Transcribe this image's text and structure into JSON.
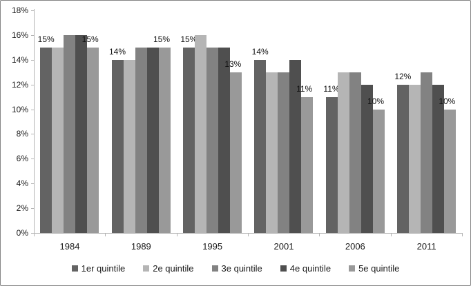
{
  "chart_data": {
    "type": "bar",
    "title": "",
    "xlabel": "",
    "ylabel": "",
    "categories": [
      "1984",
      "1989",
      "1995",
      "2001",
      "2006",
      "2011"
    ],
    "series": [
      {
        "name": "1er quintile",
        "color": "#636363",
        "values": [
          15,
          14,
          15,
          14,
          11,
          12
        ],
        "show_labels": true,
        "labels": [
          "15%",
          "14%",
          "15%",
          "14%",
          "11%",
          "12%"
        ]
      },
      {
        "name": "2e quintile",
        "color": "#b5b5b5",
        "values": [
          15,
          14,
          16,
          13,
          13,
          12
        ],
        "show_labels": false,
        "labels": []
      },
      {
        "name": "3e quintile",
        "color": "#828282",
        "values": [
          16,
          15,
          15,
          13,
          13,
          13
        ],
        "show_labels": false,
        "labels": []
      },
      {
        "name": "4e quintile",
        "color": "#4f4f4f",
        "values": [
          16,
          15,
          15,
          14,
          12,
          12
        ],
        "show_labels": false,
        "labels": []
      },
      {
        "name": "5e quintile",
        "color": "#999999",
        "values": [
          15,
          15,
          13,
          11,
          10,
          10
        ],
        "show_labels": true,
        "labels": [
          "15%",
          "15%",
          "13%",
          "11%",
          "10%",
          "10%"
        ]
      }
    ],
    "ylim": [
      0,
      18
    ],
    "ytick_step": 2,
    "ytick_labels": [
      "0%",
      "2%",
      "4%",
      "6%",
      "8%",
      "10%",
      "12%",
      "14%",
      "16%",
      "18%"
    ],
    "grid": false,
    "legend_position": "bottom",
    "axis_color": "#b3b3b3",
    "text_color": "#1a1a1a"
  }
}
